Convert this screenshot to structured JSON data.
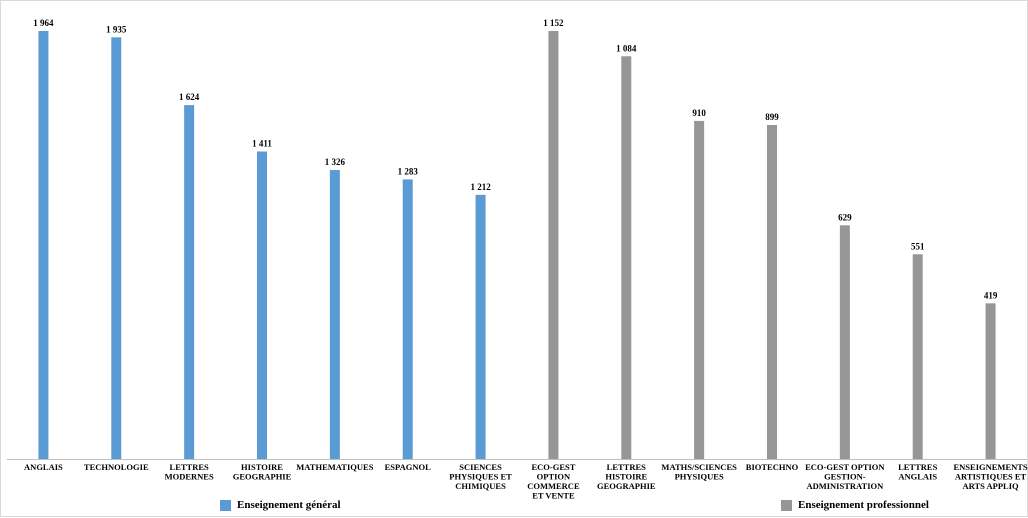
{
  "chart_data": {
    "type": "bar",
    "categories": [
      "ANGLAIS",
      "TECHNOLOGIE",
      "LETTRES MODERNES",
      "HISTOIRE GEOGRAPHIE",
      "MATHEMATIQUES",
      "ESPAGNOL",
      "SCIENCES PHYSIQUES ET CHIMIQUES",
      "ECO-GEST OPTION COMMERCE ET VENTE",
      "LETTRES HISTOIRE GEOGRAPHIE",
      "MATHS/SCIENCES PHYSIQUES",
      "BIOTECHNO",
      "ECO-GEST OPTION GESTION-ADMINISTRATION",
      "LETTRES ANGLAIS",
      "ENSEIGNEMENTS ARTISTIQUES ET ARTS APPLIQ"
    ],
    "category_lines": [
      [
        "ANGLAIS"
      ],
      [
        "TECHNOLOGIE"
      ],
      [
        "LETTRES",
        "MODERNES"
      ],
      [
        "HISTOIRE",
        "GEOGRAPHIE"
      ],
      [
        "MATHEMATIQUES"
      ],
      [
        "ESPAGNOL"
      ],
      [
        "SCIENCES",
        "PHYSIQUES ET",
        "CHIMIQUES"
      ],
      [
        "ECO-GEST",
        "OPTION",
        "COMMERCE",
        "ET VENTE"
      ],
      [
        "LETTRES",
        "HISTOIRE",
        "GEOGRAPHIE"
      ],
      [
        "MATHS/SCIENCES",
        "PHYSIQUES"
      ],
      [
        "BIOTECHNO"
      ],
      [
        "ECO-GEST OPTION",
        "GESTION-",
        "ADMINISTRATION"
      ],
      [
        "LETTRES",
        "ANGLAIS"
      ],
      [
        "ENSEIGNEMENTS",
        "ARTISTIQUES ET",
        "ARTS APPLIQ"
      ]
    ],
    "values": [
      1964,
      1935,
      1624,
      1411,
      1326,
      1283,
      1212,
      1152,
      1084,
      910,
      899,
      629,
      551,
      419
    ],
    "value_labels": [
      "1 964",
      "1 935",
      "1 624",
      "1 411",
      "1 326",
      "1 283",
      "1 212",
      "1 152",
      "1 084",
      "910",
      "899",
      "629",
      "551",
      "419"
    ],
    "series_index": [
      0,
      0,
      0,
      0,
      0,
      0,
      0,
      1,
      1,
      1,
      1,
      1,
      1,
      1
    ],
    "series": [
      {
        "name": "Enseignement général",
        "color": "#5b9bd5"
      },
      {
        "name": "Enseignement professionnel",
        "color": "#969696"
      }
    ],
    "note": "",
    "segments": [
      {
        "series": 0,
        "ymax": 1964
      },
      {
        "series": 1,
        "ymax": 1152
      }
    ],
    "title": "",
    "xlabel": "",
    "ylabel": "",
    "grid": false,
    "legend_position": "bottom"
  }
}
